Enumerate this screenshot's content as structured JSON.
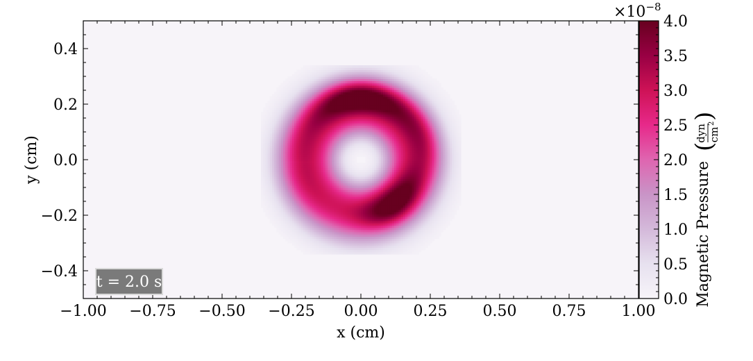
{
  "chart_data": {
    "type": "heatmap",
    "title": "",
    "xlabel": "x  (cm)",
    "ylabel": "y  (cm)",
    "xlim": [
      -1.0,
      1.0
    ],
    "ylim": [
      -0.5,
      0.5
    ],
    "x_ticks": [
      "−1.00",
      "−0.75",
      "−0.50",
      "−0.25",
      "0.00",
      "0.25",
      "0.50",
      "0.75",
      "1.00"
    ],
    "y_ticks": [
      "−0.4",
      "−0.2",
      "0.0",
      "0.2",
      "0.4"
    ],
    "annotation": "t = 2.0 s",
    "field": {
      "description": "ring of magnetic pressure centered at origin",
      "ring_center": [
        0.0,
        0.0
      ],
      "peak_value": 4e-08,
      "max_region": "upper arc near y = 0.22"
    },
    "colorbar": {
      "label": "Magnetic Pressure",
      "unit_num": "dyn",
      "unit_den": "cm",
      "unit_den_exp": "2",
      "multiplier": "×10",
      "multiplier_exp": "−8",
      "range": [
        0.0,
        4.0
      ],
      "ticks": [
        "0.0",
        "0.5",
        "1.0",
        "1.5",
        "2.0",
        "2.5",
        "3.0",
        "3.5",
        "4.0"
      ],
      "colormap": [
        "#f7f4f9",
        "#e7e1ef",
        "#d4b9da",
        "#c994c7",
        "#df65b0",
        "#e7298a",
        "#ce1256",
        "#980043",
        "#67001f"
      ]
    }
  }
}
